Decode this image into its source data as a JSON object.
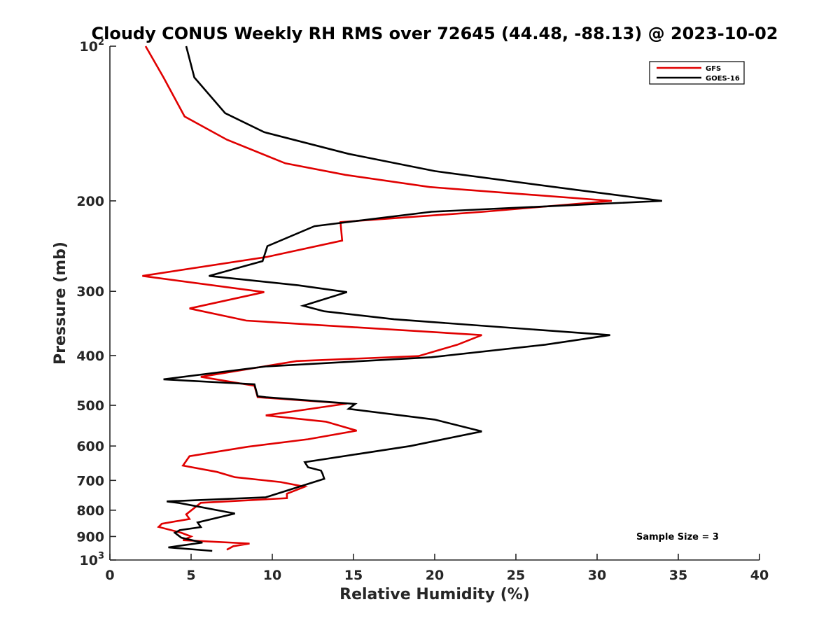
{
  "chart_data": {
    "type": "line",
    "title": "Cloudy CONUS Weekly RH RMS over 72645 (44.48, -88.13) @ 2023-10-02",
    "xlabel": "Relative Humidity (%)",
    "ylabel": "Pressure (mb)",
    "xlim": [
      0,
      40
    ],
    "ylim": [
      100,
      1000
    ],
    "y_scale": "log",
    "y_reversed": true,
    "x_ticks": [
      0,
      5,
      10,
      15,
      20,
      25,
      30,
      35,
      40
    ],
    "y_ticks": [
      {
        "value": 100,
        "base": "10",
        "exp": "2"
      },
      {
        "value": 200,
        "label": "200"
      },
      {
        "value": 300,
        "label": "300"
      },
      {
        "value": 400,
        "label": "400"
      },
      {
        "value": 500,
        "label": "500"
      },
      {
        "value": 600,
        "label": "600"
      },
      {
        "value": 700,
        "label": "700"
      },
      {
        "value": 800,
        "label": "800"
      },
      {
        "value": 900,
        "label": "900"
      },
      {
        "value": 1000,
        "base": "10",
        "exp": "3"
      }
    ],
    "grid": false,
    "legend_position": "top-right",
    "annotation": "Sample Size = 3",
    "series": [
      {
        "name": "GFS",
        "color": "#e00000",
        "points": [
          [
            2.2,
            100
          ],
          [
            3.3,
            115
          ],
          [
            4.6,
            137
          ],
          [
            7.2,
            152
          ],
          [
            10.8,
            169
          ],
          [
            14.5,
            178
          ],
          [
            19.7,
            188
          ],
          [
            30.9,
            200
          ],
          [
            23.0,
            210
          ],
          [
            14.2,
            220
          ],
          [
            14.3,
            239
          ],
          [
            9.7,
            257
          ],
          [
            2.0,
            280
          ],
          [
            9.5,
            301
          ],
          [
            4.9,
            324
          ],
          [
            8.4,
            342
          ],
          [
            22.9,
            365
          ],
          [
            21.4,
            381
          ],
          [
            19.0,
            401
          ],
          [
            11.5,
            410
          ],
          [
            5.6,
            440
          ],
          [
            8.9,
            458
          ],
          [
            9.1,
            482
          ],
          [
            14.6,
            496
          ],
          [
            9.6,
            523
          ],
          [
            13.3,
            538
          ],
          [
            15.2,
            560
          ],
          [
            12.2,
            582
          ],
          [
            8.5,
            602
          ],
          [
            4.9,
            628
          ],
          [
            4.5,
            655
          ],
          [
            6.6,
            674
          ],
          [
            7.7,
            690
          ],
          [
            10.5,
            705
          ],
          [
            12.0,
            720
          ],
          [
            10.9,
            743
          ],
          [
            10.9,
            758
          ],
          [
            5.6,
            774
          ],
          [
            4.7,
            815
          ],
          [
            4.9,
            832
          ],
          [
            3.2,
            850
          ],
          [
            3.0,
            862
          ],
          [
            4.4,
            885
          ],
          [
            5.0,
            900
          ],
          [
            4.5,
            915
          ],
          [
            8.6,
            929
          ],
          [
            7.6,
            940
          ],
          [
            7.2,
            955
          ]
        ]
      },
      {
        "name": "GOES-16",
        "color": "#000000",
        "points": [
          [
            4.7,
            100
          ],
          [
            5.2,
            115
          ],
          [
            7.1,
            135
          ],
          [
            9.5,
            147
          ],
          [
            14.7,
            162
          ],
          [
            20.0,
            175
          ],
          [
            28.5,
            190
          ],
          [
            34.0,
            200
          ],
          [
            19.8,
            210
          ],
          [
            12.6,
            224
          ],
          [
            9.7,
            245
          ],
          [
            9.4,
            262
          ],
          [
            6.1,
            280
          ],
          [
            11.6,
            292
          ],
          [
            14.6,
            301
          ],
          [
            11.9,
            320
          ],
          [
            13.2,
            328
          ],
          [
            17.5,
            340
          ],
          [
            30.8,
            365
          ],
          [
            26.8,
            381
          ],
          [
            19.8,
            403
          ],
          [
            9.6,
            420
          ],
          [
            3.3,
            445
          ],
          [
            8.9,
            455
          ],
          [
            9.1,
            480
          ],
          [
            9.6,
            482
          ],
          [
            15.1,
            497
          ],
          [
            14.7,
            508
          ],
          [
            20.0,
            533
          ],
          [
            22.9,
            562
          ],
          [
            18.5,
            600
          ],
          [
            12.0,
            645
          ],
          [
            12.2,
            660
          ],
          [
            13.0,
            670
          ],
          [
            13.1,
            680
          ],
          [
            13.2,
            695
          ],
          [
            9.6,
            755
          ],
          [
            3.5,
            769
          ],
          [
            4.3,
            775
          ],
          [
            7.7,
            812
          ],
          [
            5.4,
            845
          ],
          [
            5.6,
            863
          ],
          [
            4.3,
            875
          ],
          [
            4.0,
            885
          ],
          [
            4.4,
            905
          ],
          [
            5.7,
            925
          ],
          [
            3.6,
            945
          ],
          [
            6.3,
            960
          ]
        ]
      }
    ]
  }
}
